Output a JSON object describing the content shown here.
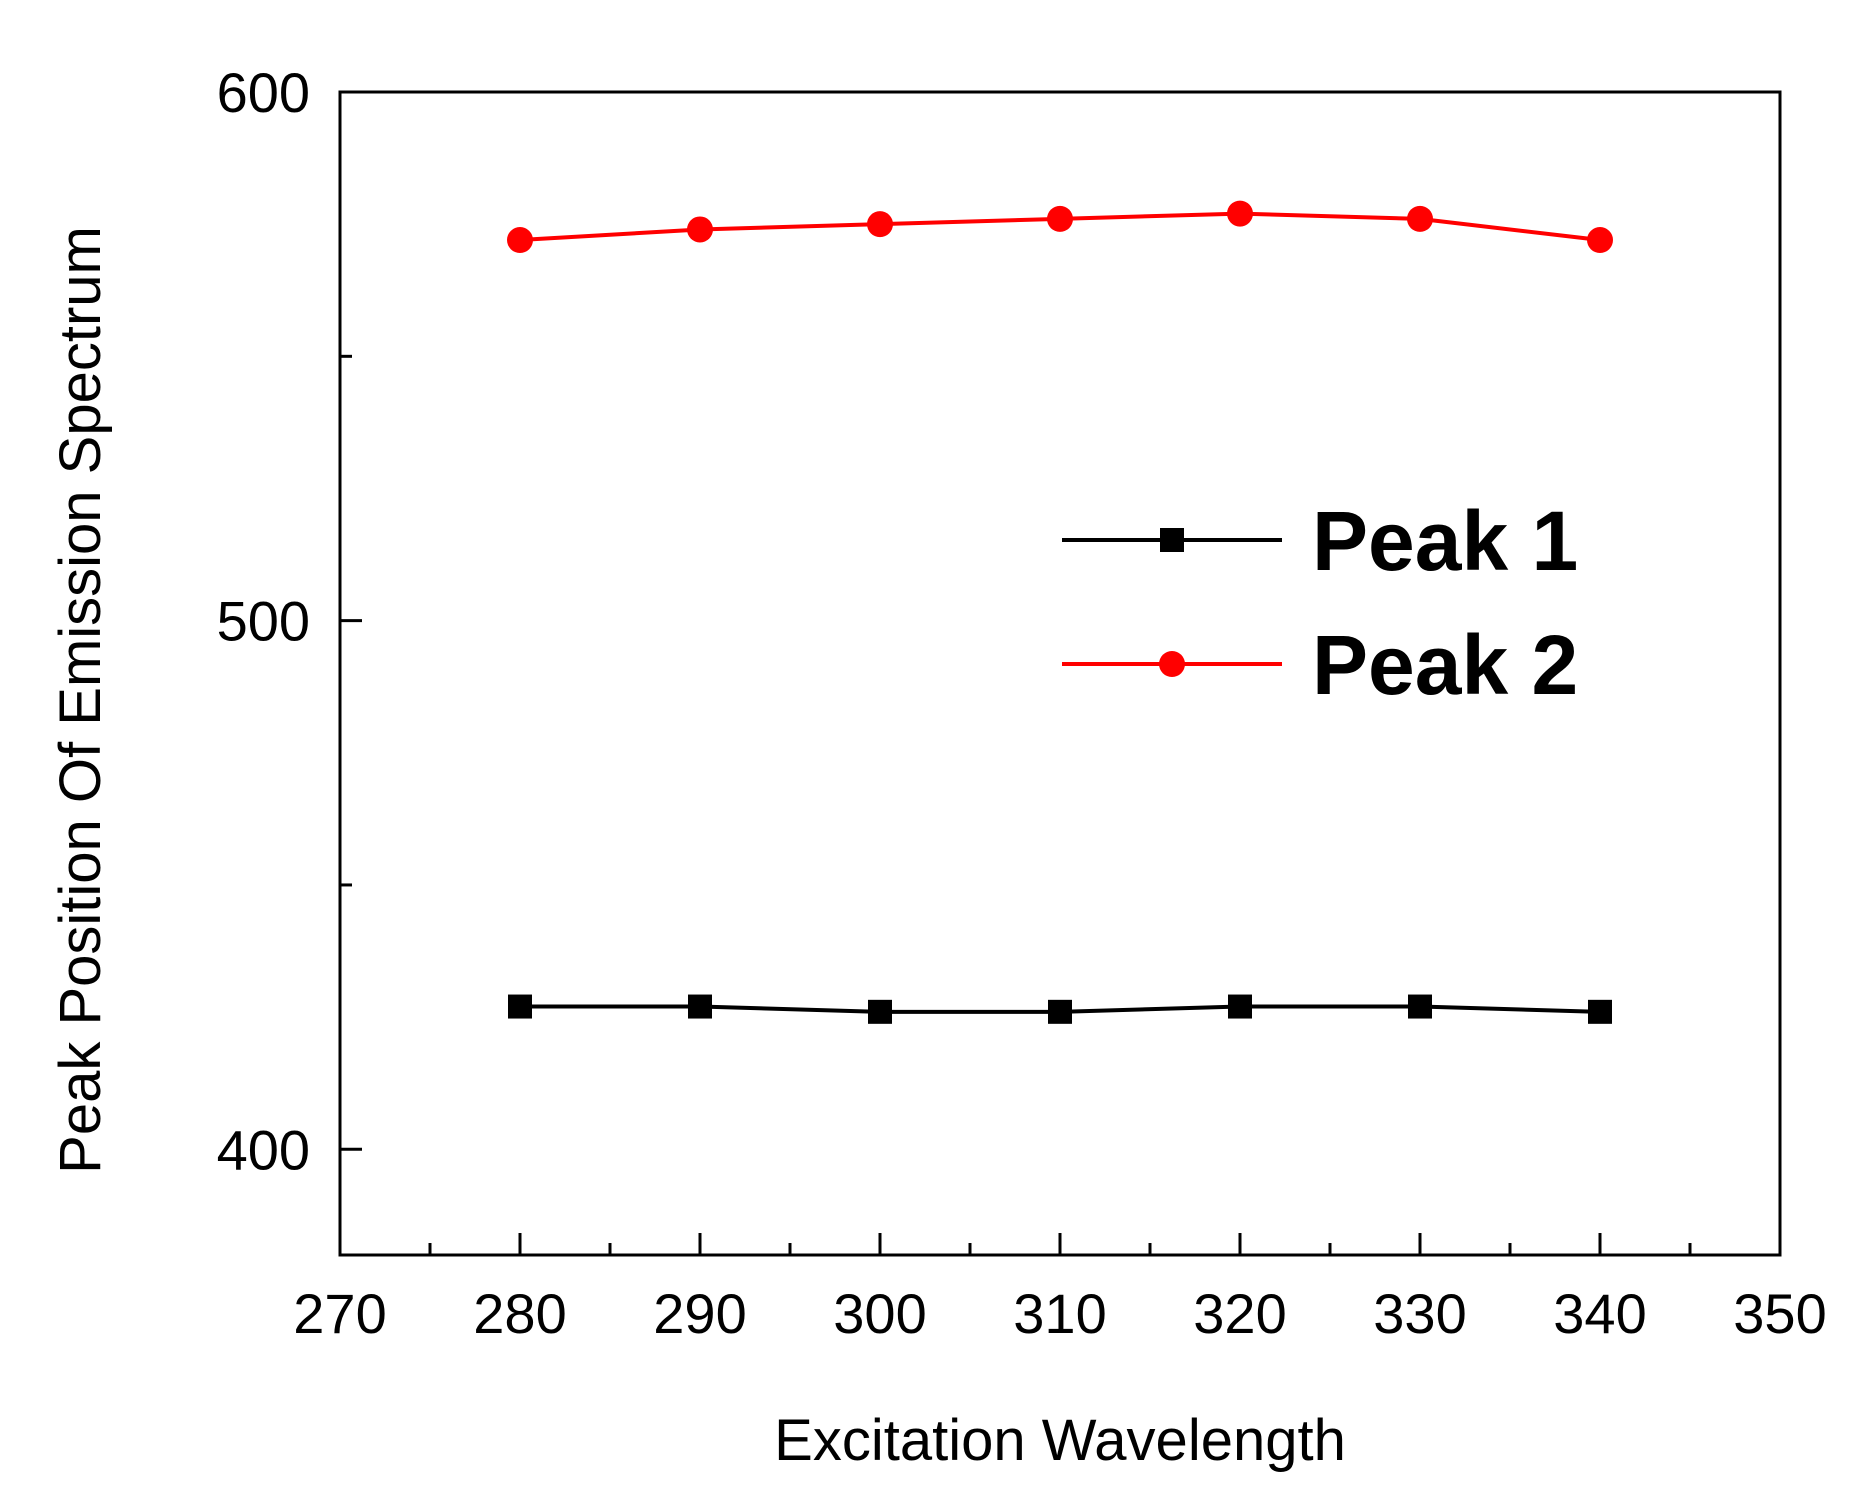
{
  "chart_data": {
    "type": "line",
    "title": "",
    "xlabel": "Excitation Wavelength",
    "ylabel": "Peak Position Of Emission Spectrum",
    "xlim": [
      270,
      350
    ],
    "ylim": [
      380,
      600
    ],
    "x_ticks": [
      270,
      280,
      290,
      300,
      310,
      320,
      330,
      340,
      350
    ],
    "y_ticks": [
      400,
      500,
      600
    ],
    "grid": false,
    "legend_position": "center-right",
    "x": [
      280,
      290,
      300,
      310,
      320,
      330,
      340
    ],
    "series": [
      {
        "name": "Peak 1",
        "color": "#000000",
        "marker": "square",
        "values": [
          427,
          427,
          426,
          426,
          427,
          427,
          426
        ]
      },
      {
        "name": "Peak 2",
        "color": "#ff0000",
        "marker": "circle",
        "values": [
          572,
          574,
          575,
          576,
          577,
          576,
          572
        ]
      }
    ]
  }
}
